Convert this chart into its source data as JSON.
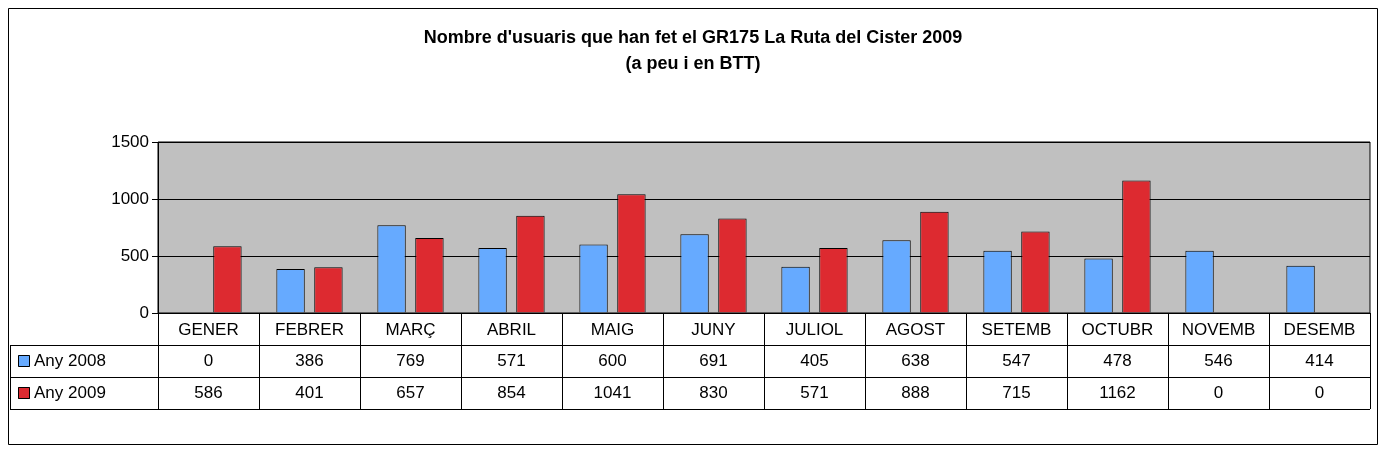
{
  "chart_data": {
    "type": "bar",
    "title": "Nombre d'usuaris que han fet el GR175 La Ruta del Cister 2009\n(a peu i en BTT)",
    "categories": [
      "GENER",
      "FEBRER",
      "MARÇ",
      "ABRIL",
      "MAIG",
      "JUNY",
      "JULIOL",
      "AGOST",
      "SETEMB",
      "OCTUBR",
      "NOVEMB",
      "DESEMB"
    ],
    "series": [
      {
        "name": "Any 2008",
        "color": "#66aaff",
        "values": [
          0,
          386,
          769,
          571,
          600,
          691,
          405,
          638,
          547,
          478,
          546,
          414
        ]
      },
      {
        "name": "Any 2009",
        "color": "#dd2a30",
        "values": [
          586,
          401,
          657,
          854,
          1041,
          830,
          571,
          888,
          715,
          1162,
          0,
          0
        ]
      }
    ],
    "ylim": [
      0,
      1500
    ],
    "yticks": [
      0,
      500,
      1000,
      1500
    ],
    "grid": "y",
    "legend": "bottom left",
    "data_labels": true
  }
}
